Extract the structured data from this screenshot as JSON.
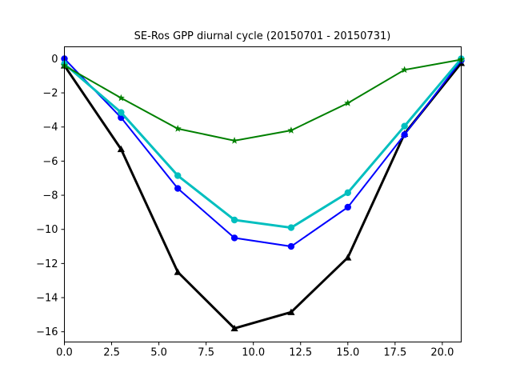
{
  "chart_data": {
    "type": "line",
    "title": "SE-Ros GPP diurnal cycle (20150701 - 20150731)",
    "xlabel": "",
    "ylabel": "",
    "xlim": [
      0,
      21
    ],
    "ylim": [
      -16.6,
      0.7
    ],
    "xticks": [
      0.0,
      2.5,
      5.0,
      7.5,
      10.0,
      12.5,
      15.0,
      17.5,
      20.0
    ],
    "xtick_labels": [
      "0.0",
      "2.5",
      "5.0",
      "7.5",
      "10.0",
      "12.5",
      "15.0",
      "17.5",
      "20.0"
    ],
    "yticks": [
      0,
      -2,
      -4,
      -6,
      -8,
      -10,
      -12,
      -14,
      -16
    ],
    "ytick_labels": [
      "0",
      "−2",
      "−4",
      "−6",
      "−8",
      "−10",
      "−12",
      "−14",
      "−16"
    ],
    "grid": false,
    "x": [
      0,
      3,
      6,
      9,
      12,
      15,
      18,
      21
    ],
    "series": [
      {
        "color": "#000000",
        "marker": "triangle",
        "line_width": 3,
        "values": [
          -0.4,
          -5.3,
          -12.5,
          -15.8,
          -14.85,
          -11.65,
          -4.4,
          -0.25
        ]
      },
      {
        "color": "#0000ff",
        "marker": "circle",
        "line_width": 2,
        "values": [
          0.0,
          -3.45,
          -7.6,
          -10.5,
          -11.0,
          -8.7,
          -4.45,
          -0.1
        ]
      },
      {
        "color": "#00bfbf",
        "marker": "circle",
        "line_width": 3,
        "values": [
          -0.3,
          -3.15,
          -6.85,
          -9.45,
          -9.9,
          -7.85,
          -3.95,
          0.0
        ]
      },
      {
        "color": "#008000",
        "marker": "star",
        "line_width": 2,
        "values": [
          -0.4,
          -2.3,
          -4.1,
          -4.8,
          -4.2,
          -2.6,
          -0.65,
          -0.05
        ]
      }
    ]
  }
}
